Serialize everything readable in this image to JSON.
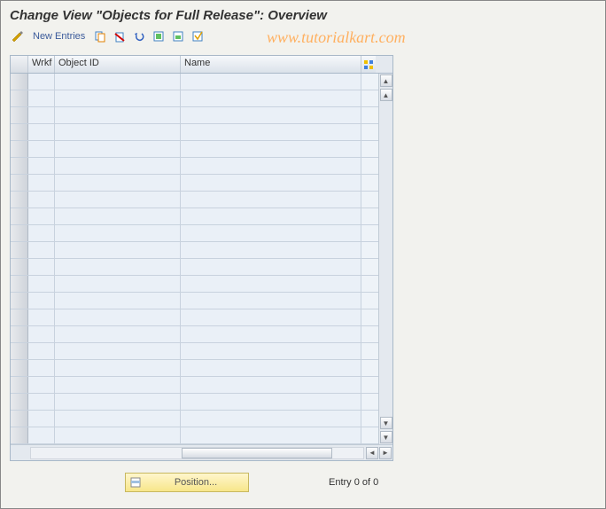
{
  "title": "Change View \"Objects for Full Release\": Overview",
  "watermark": "www.tutorialkart.com",
  "toolbar": {
    "new_entries_label": "New Entries"
  },
  "columns": {
    "wrkf": "Wrkf",
    "object_id": "Object ID",
    "name": "Name"
  },
  "row_count": 22,
  "footer": {
    "position_label": "Position...",
    "entry_text": "Entry 0 of 0"
  },
  "colors": {
    "page_bg": "#f2f2ee",
    "grid_bg": "#eaf0f7",
    "grid_border": "#c8d2de",
    "header_grad_top": "#f6f8fb",
    "header_grad_bot": "#dbe2ea",
    "accent_link": "#3a5a9a",
    "watermark_color": "#ffb060",
    "position_btn_top": "#fff6cc",
    "position_btn_bot": "#f7e68a"
  }
}
